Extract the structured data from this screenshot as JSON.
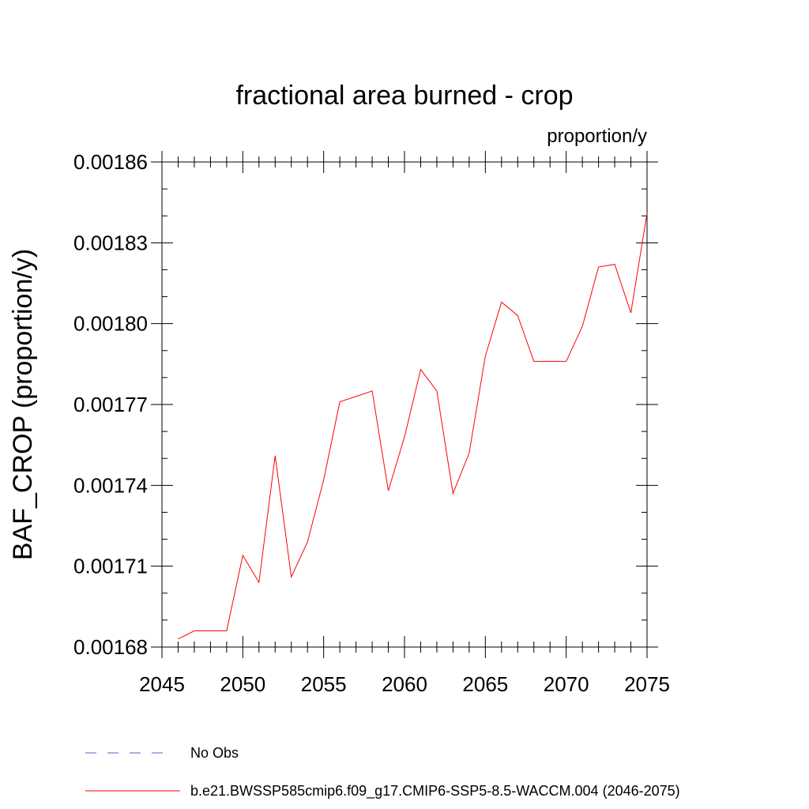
{
  "chart_data": {
    "type": "line",
    "title": "fractional area burned - crop",
    "units": "proportion/y",
    "ylabel": "BAF_CROP  (proportion/y)",
    "xlabel": "",
    "xlim": [
      2045,
      2075
    ],
    "ylim": [
      0.00168,
      0.00186
    ],
    "xticks": [
      2045,
      2050,
      2055,
      2060,
      2065,
      2070,
      2075
    ],
    "xtick_labels": [
      "2045",
      "2050",
      "2055",
      "2060",
      "2065",
      "2070",
      "2075"
    ],
    "yticks": [
      0.00168,
      0.00171,
      0.00174,
      0.00177,
      0.0018,
      0.00183,
      0.00186
    ],
    "ytick_labels": [
      "0.00168",
      "0.00171",
      "0.00174",
      "0.00177",
      "0.00180",
      "0.00183",
      "0.00186"
    ],
    "series": [
      {
        "name": "b.e21.BWSSP585cmip6.f09_g17.CMIP6-SSP5-8.5-WACCM.004 (2046-2075)",
        "color": "#ff0000",
        "style": "solid",
        "x": [
          2046,
          2047,
          2048,
          2049,
          2050,
          2051,
          2052,
          2053,
          2054,
          2055,
          2056,
          2057,
          2058,
          2059,
          2060,
          2061,
          2062,
          2063,
          2064,
          2065,
          2066,
          2067,
          2068,
          2069,
          2070,
          2071,
          2072,
          2073,
          2074,
          2075
        ],
        "values": [
          0.001683,
          0.001686,
          0.001686,
          0.001686,
          0.001714,
          0.001704,
          0.001751,
          0.001706,
          0.001719,
          0.001742,
          0.001771,
          0.001773,
          0.001775,
          0.001738,
          0.001758,
          0.001783,
          0.001775,
          0.001737,
          0.001752,
          0.001788,
          0.001808,
          0.001803,
          0.001786,
          0.001786,
          0.001786,
          0.001799,
          0.001821,
          0.001822,
          0.001804,
          0.001841
        ]
      }
    ],
    "legend": [
      {
        "label": "No Obs",
        "color": "#6a5acd",
        "style": "dashed"
      },
      {
        "label": "b.e21.BWSSP585cmip6.f09_g17.CMIP6-SSP5-8.5-WACCM.004 (2046-2075)",
        "color": "#ff0000",
        "style": "solid"
      }
    ]
  }
}
